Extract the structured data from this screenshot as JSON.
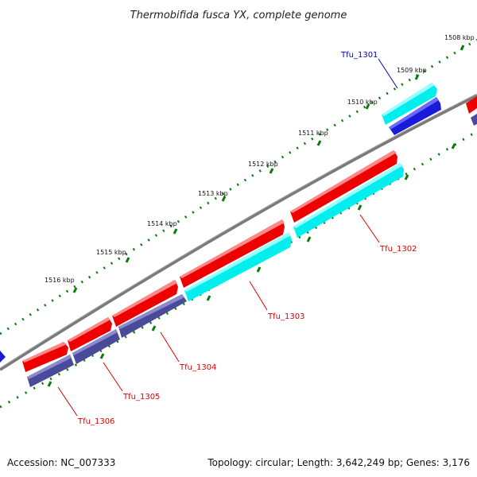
{
  "title": "Thermobifida fusca YX, complete genome",
  "footer": {
    "accession": "Accession: NC_007333",
    "summary": "Topology: circular; Length: 3,642,249 bp; Genes: 3,176"
  },
  "ticks": [
    {
      "label": "1508 kbp"
    },
    {
      "label": "1509 kbp"
    },
    {
      "label": "1510 kbp"
    },
    {
      "label": "1511 kbp"
    },
    {
      "label": "1512 kbp"
    },
    {
      "label": "1513 kbp"
    },
    {
      "label": "1514 kbp"
    },
    {
      "label": "1515 kbp"
    },
    {
      "label": "1516 kbp"
    }
  ],
  "genes": [
    {
      "label": "Tfu_1301",
      "label_color": "#0000cc"
    },
    {
      "label": "Tfu_1302",
      "label_color": "#dd0000"
    },
    {
      "label": "Tfu_1303",
      "label_color": "#dd0000"
    },
    {
      "label": "Tfu_1304",
      "label_color": "#dd0000"
    },
    {
      "label": "Tfu_1305",
      "label_color": "#dd0000"
    },
    {
      "label": "Tfu_1306",
      "label_color": "#dd0000"
    }
  ],
  "colors": {
    "backbone": "#7a7a7a",
    "tick": "#0a7a0a",
    "forward_cds": "#ee0000",
    "forward_match": "#00eeee",
    "reverse_cds": "#1a1adc",
    "reverse_match": "#4a4a9a"
  }
}
